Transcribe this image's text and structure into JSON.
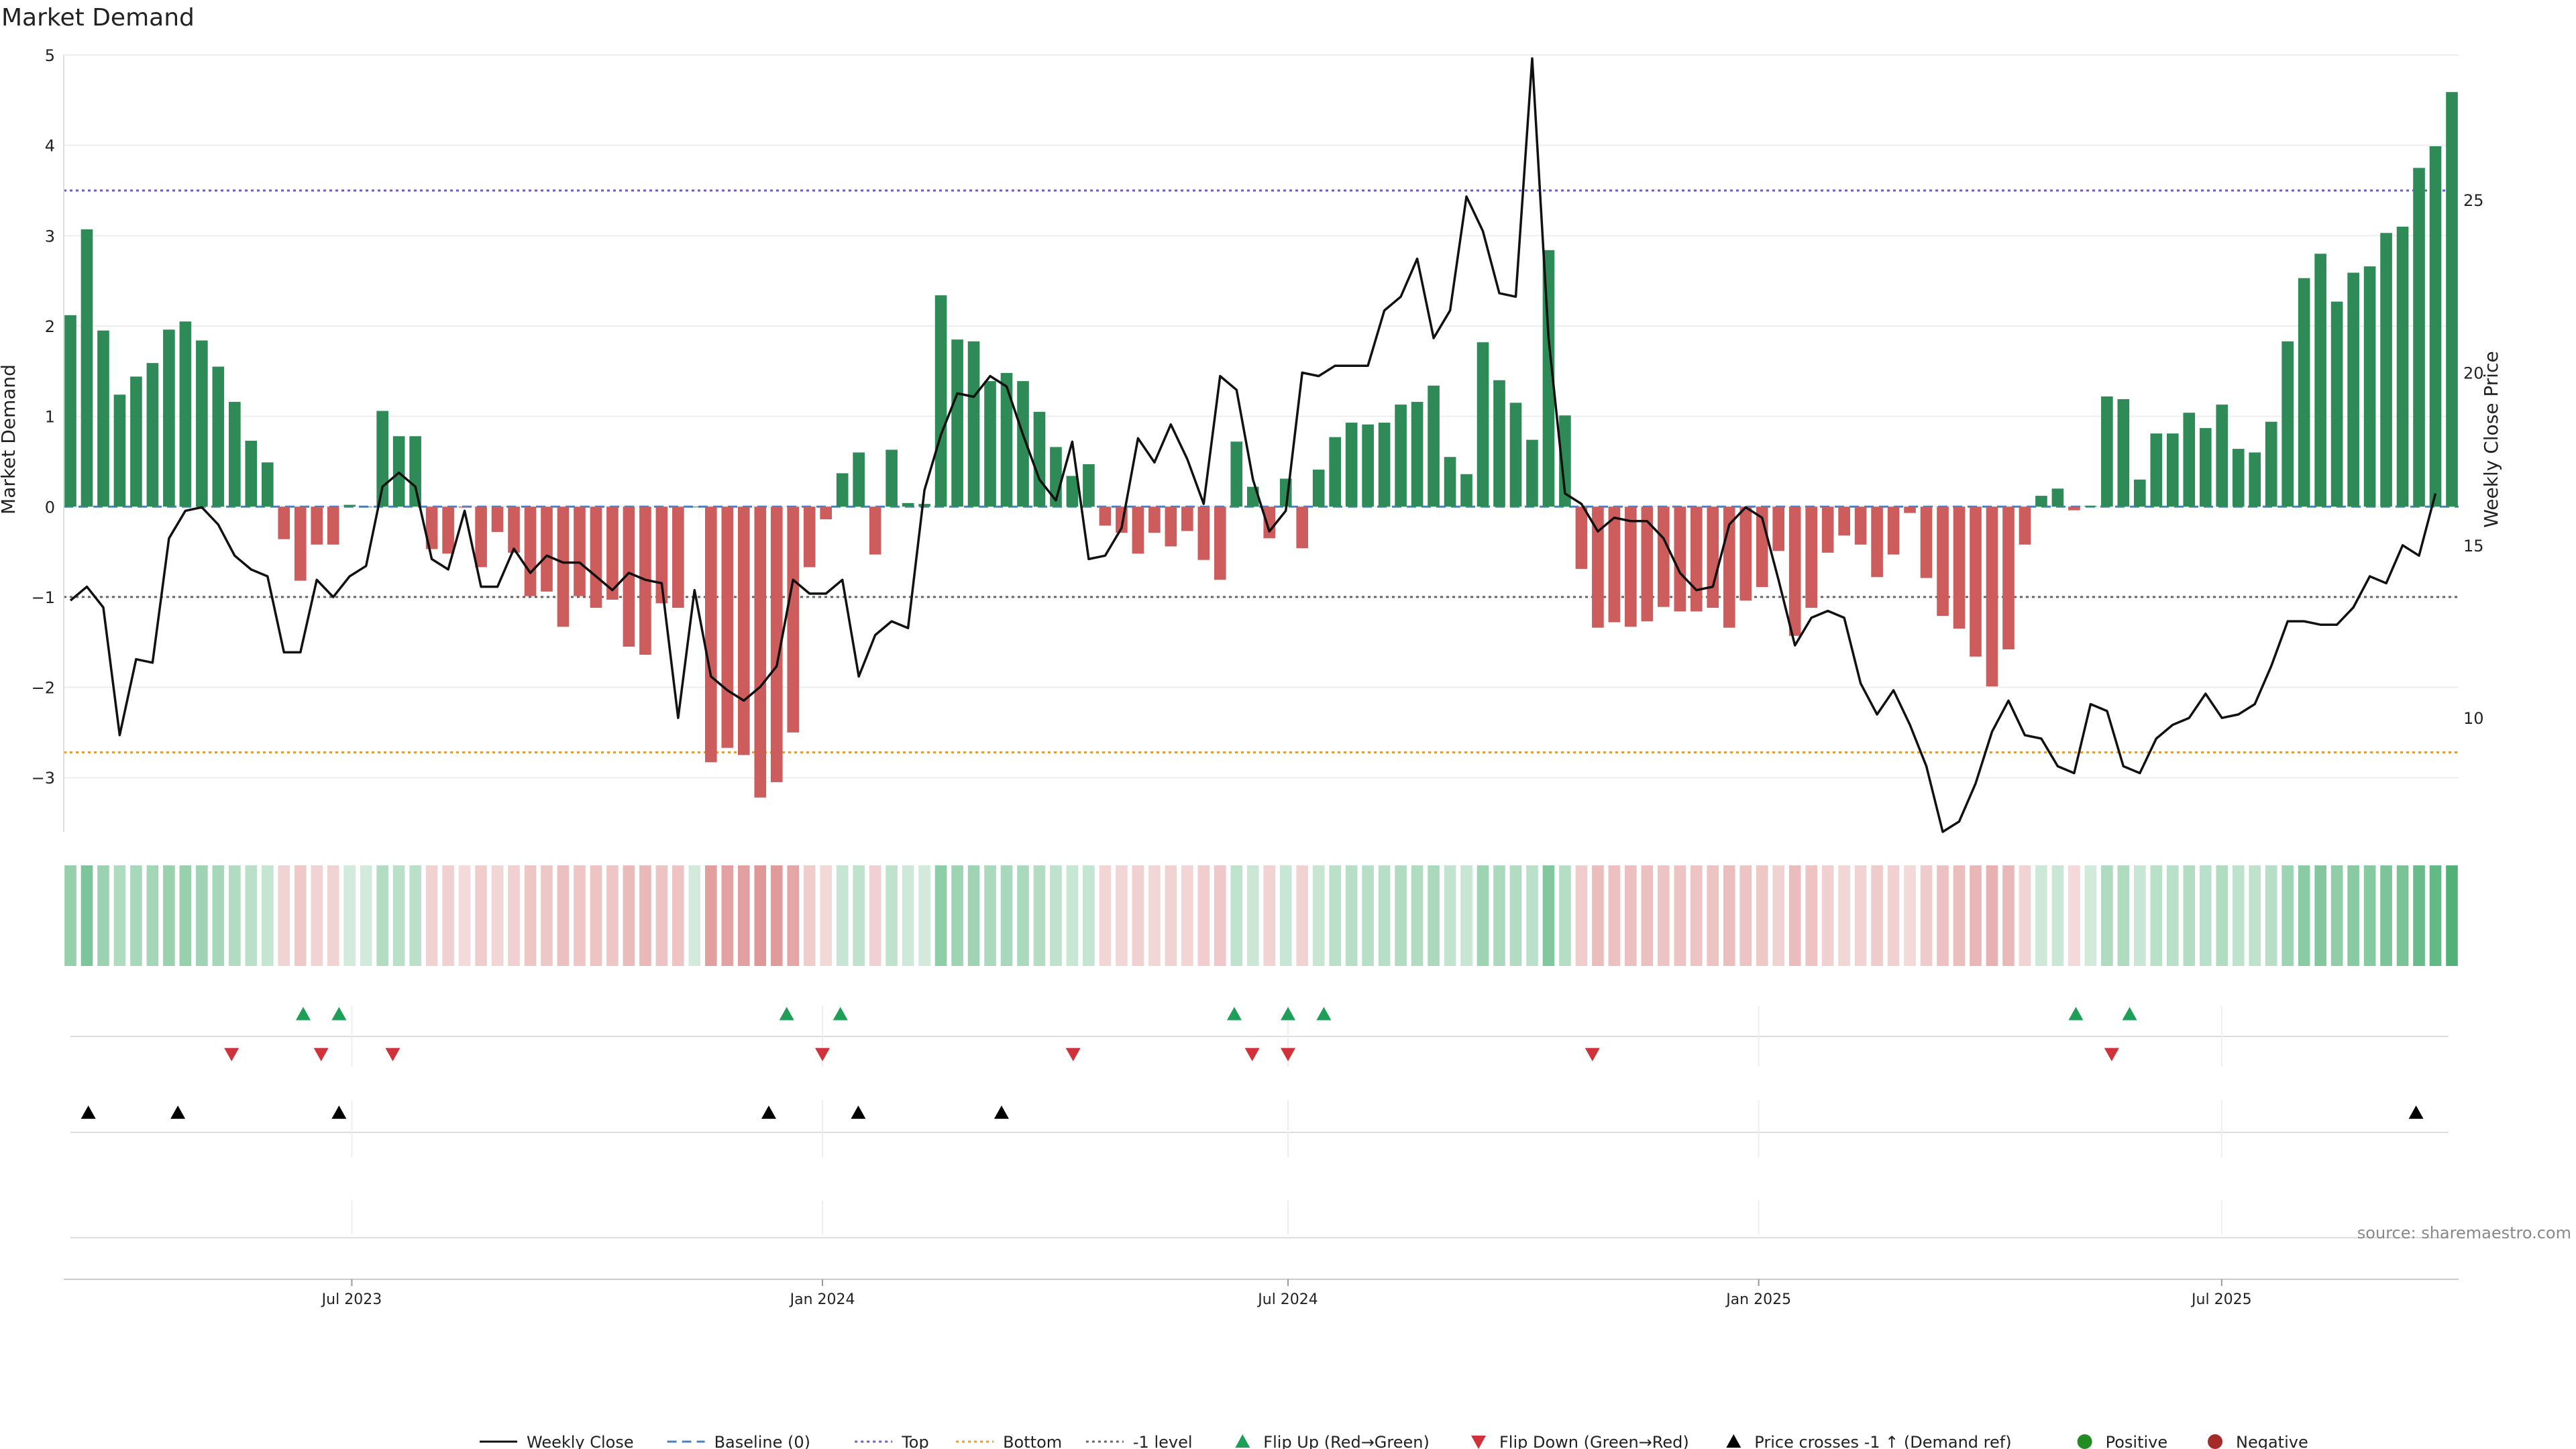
{
  "title": "Market Demand",
  "source": "source: sharemaestro.com",
  "colors": {
    "positive_bar": "#2e8b57",
    "negative_bar": "#cd5c5c",
    "price_line": "#111111",
    "baseline": "#4a7fc1",
    "top_line": "#6a5acd",
    "bottom_line": "#e89b2c",
    "minus1_line": "#666666",
    "flip_up": "#1f9e58",
    "flip_down": "#d0313a",
    "cross": "#000000",
    "heat_pos": "#2ca05a",
    "heat_neg": "#cd5c5c",
    "legend_positive": "#228b22",
    "legend_negative": "#a52a2a"
  },
  "chart_data": {
    "type": "bar",
    "title": "Market Demand",
    "ylabel": "Market Demand",
    "y2label": "Weekly Close Price",
    "ylim": [
      -3.6,
      5.0
    ],
    "y2lim": [
      6.7,
      29.2
    ],
    "yticks": [
      -3,
      -2,
      -1,
      0,
      1,
      2,
      3,
      4,
      5
    ],
    "y2ticks": [
      10,
      15,
      20,
      25
    ],
    "start_date": "2023-03-13",
    "end_date": "2025-09-29",
    "x_ticks": [
      {
        "date": "2023-07-01",
        "label": "Jul 2023"
      },
      {
        "date": "2024-01-01",
        "label": "Jan 2024"
      },
      {
        "date": "2024-07-01",
        "label": "Jul 2024"
      },
      {
        "date": "2025-01-01",
        "label": "Jan 2025"
      },
      {
        "date": "2025-07-01",
        "label": "Jul 2025"
      }
    ],
    "reference_lines": {
      "baseline": 0,
      "top": 3.5,
      "bottom": -2.72,
      "minus1_level": -1
    },
    "demand": [
      2.12,
      3.07,
      1.95,
      1.24,
      1.44,
      1.59,
      1.96,
      2.05,
      1.84,
      1.55,
      1.16,
      0.73,
      0.49,
      -0.36,
      -0.82,
      -0.42,
      -0.42,
      0.02,
      0.0,
      1.06,
      0.78,
      0.78,
      -0.47,
      -0.52,
      -0.01,
      -0.67,
      -0.28,
      -0.51,
      -0.99,
      -0.94,
      -1.33,
      -0.99,
      -1.12,
      -1.03,
      -1.55,
      -1.64,
      -1.07,
      -1.12,
      0.0,
      -2.83,
      -2.67,
      -2.75,
      -3.22,
      -3.05,
      -2.5,
      -0.67,
      -0.14,
      0.37,
      0.6,
      -0.53,
      0.63,
      0.04,
      0.03,
      2.34,
      1.85,
      1.83,
      1.39,
      1.48,
      1.39,
      1.05,
      0.66,
      0.34,
      0.47,
      -0.21,
      -0.29,
      -0.52,
      -0.29,
      -0.44,
      -0.27,
      -0.59,
      -0.81,
      0.72,
      0.22,
      -0.35,
      0.31,
      -0.46,
      0.41,
      0.77,
      0.93,
      0.91,
      0.93,
      1.13,
      1.16,
      1.34,
      0.55,
      0.36,
      1.82,
      1.4,
      1.15,
      0.74,
      2.84,
      1.01,
      -0.69,
      -1.34,
      -1.28,
      -1.33,
      -1.27,
      -1.11,
      -1.16,
      -1.16,
      -1.12,
      -1.34,
      -1.04,
      -0.89,
      -0.49,
      -1.43,
      -1.12,
      -0.51,
      -0.32,
      -0.42,
      -0.78,
      -0.53,
      -0.07,
      -0.79,
      -1.21,
      -1.35,
      -1.66,
      -1.99,
      -1.58,
      -0.42,
      0.12,
      0.2,
      -0.04,
      0.01,
      1.22,
      1.19,
      0.3,
      0.81,
      0.81,
      1.04,
      0.87,
      1.13,
      0.64,
      0.6,
      0.94,
      1.83,
      2.53,
      2.8,
      2.27,
      2.59,
      2.66,
      3.03,
      3.1,
      3.75,
      3.99,
      4.59
    ],
    "price": [
      13.4,
      13.8,
      13.2,
      9.5,
      11.7,
      11.6,
      15.2,
      16.0,
      16.1,
      15.6,
      14.7,
      14.3,
      14.1,
      11.9,
      11.9,
      14.0,
      13.5,
      14.1,
      14.4,
      16.7,
      17.1,
      16.7,
      14.6,
      14.3,
      16.0,
      13.8,
      13.8,
      14.9,
      14.2,
      14.7,
      14.5,
      14.5,
      14.1,
      13.7,
      14.2,
      14.0,
      13.9,
      10.0,
      13.7,
      11.2,
      10.8,
      10.5,
      10.9,
      11.5,
      14.0,
      13.6,
      13.6,
      14.0,
      11.2,
      12.4,
      12.8,
      12.6,
      16.6,
      18.2,
      19.4,
      19.3,
      19.9,
      19.6,
      18.2,
      16.9,
      16.3,
      18.0,
      14.6,
      14.7,
      15.5,
      18.1,
      17.4,
      18.5,
      17.5,
      16.2,
      19.9,
      19.5,
      16.9,
      15.4,
      16.0,
      20.0,
      19.9,
      20.2,
      20.2,
      20.2,
      21.8,
      22.2,
      23.3,
      21.0,
      21.8,
      25.1,
      24.1,
      22.3,
      22.2,
      29.1,
      21.0,
      16.5,
      16.2,
      15.4,
      15.8,
      15.7,
      15.7,
      15.2,
      14.2,
      13.7,
      13.8,
      15.6,
      16.1,
      15.8,
      14.0,
      12.1,
      12.9,
      13.1,
      12.9,
      11.0,
      10.1,
      10.8,
      9.8,
      8.6,
      6.7,
      7.0,
      8.1,
      9.6,
      10.5,
      9.5,
      9.4,
      8.6,
      8.4,
      10.4,
      10.2,
      8.6,
      8.4,
      9.4,
      9.8,
      10.0,
      10.7,
      10.0,
      10.1,
      10.4,
      11.5,
      12.8,
      12.8,
      12.7,
      12.7,
      13.2,
      14.1,
      13.9,
      15.0,
      14.7,
      16.5
    ],
    "flip_up_dates": [
      "2023-06-12",
      "2023-06-26",
      "2023-12-18",
      "2024-01-08",
      "2024-06-10",
      "2024-07-01",
      "2024-07-15",
      "2025-05-05",
      "2025-05-26"
    ],
    "flip_down_dates": [
      "2023-05-15",
      "2023-06-19",
      "2023-07-17",
      "2024-01-01",
      "2024-04-08",
      "2024-06-17",
      "2024-07-01",
      "2024-10-28",
      "2025-05-19"
    ],
    "price_cross_dates": [
      "2023-03-20",
      "2023-04-24",
      "2023-06-26",
      "2023-12-11",
      "2024-01-15",
      "2024-03-11",
      "2025-09-15"
    ]
  },
  "legend": [
    {
      "label": "Weekly Close",
      "marker": "line-solid"
    },
    {
      "label": "Baseline (0)",
      "marker": "line-dashed"
    },
    {
      "label": "Top",
      "marker": "line-dotted"
    },
    {
      "label": "Bottom",
      "marker": "line-dotted"
    },
    {
      "label": "-1 level",
      "marker": "line-dotted"
    },
    {
      "label": "Flip Up (Red→Green)",
      "marker": "triangle-up"
    },
    {
      "label": "Flip Down (Green→Red)",
      "marker": "triangle-down"
    },
    {
      "label": "Price crosses -1 ↑ (Demand ref)",
      "marker": "triangle-up"
    },
    {
      "label": "Positive",
      "marker": "circle"
    },
    {
      "label": "Negative",
      "marker": "circle"
    }
  ]
}
